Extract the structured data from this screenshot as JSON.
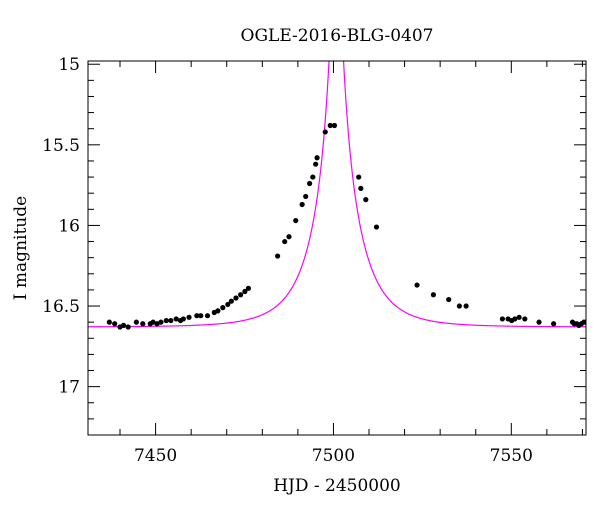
{
  "chart_data": {
    "type": "scatter",
    "title": "OGLE-2016-BLG-0407",
    "xlabel": "HJD - 2450000",
    "ylabel": "I magnitude",
    "xlim": [
      7431,
      7571
    ],
    "ylim": [
      17.3,
      14.98
    ],
    "y_inverted": true,
    "xticks": [
      7450,
      7500,
      7550
    ],
    "xtick_labels": [
      "7450",
      "7500",
      "7550"
    ],
    "yticks": [
      15,
      15.5,
      16,
      16.5,
      17
    ],
    "ytick_labels": [
      "15",
      "15.5",
      "16",
      "16.5",
      "17"
    ],
    "grid": false,
    "legend": "none",
    "colors": {
      "model": "#ff00ff",
      "points": "#000000",
      "axes": "#000000"
    },
    "series": [
      {
        "kind": "points",
        "points": [
          [
            7437.0,
            16.6
          ],
          [
            7438.5,
            16.61
          ],
          [
            7440.0,
            16.63
          ],
          [
            7441.0,
            16.62
          ],
          [
            7442.3,
            16.63
          ],
          [
            7444.6,
            16.6
          ],
          [
            7446.4,
            16.61
          ],
          [
            7448.5,
            16.61
          ],
          [
            7449.3,
            16.6
          ],
          [
            7450.4,
            16.61
          ],
          [
            7451.5,
            16.6
          ],
          [
            7453.0,
            16.59
          ],
          [
            7454.3,
            16.59
          ],
          [
            7455.8,
            16.58
          ],
          [
            7457.0,
            16.59
          ],
          [
            7457.8,
            16.58
          ],
          [
            7459.4,
            16.57
          ],
          [
            7461.6,
            16.56
          ],
          [
            7462.7,
            16.56
          ],
          [
            7464.6,
            16.56
          ],
          [
            7466.5,
            16.54
          ],
          [
            7467.5,
            16.53
          ],
          [
            7468.9,
            16.51
          ],
          [
            7470.3,
            16.49
          ],
          [
            7471.3,
            16.47
          ],
          [
            7472.6,
            16.45
          ],
          [
            7473.9,
            16.43
          ],
          [
            7475.1,
            16.41
          ],
          [
            7476.1,
            16.39
          ],
          [
            7484.3,
            16.19
          ],
          [
            7486.3,
            16.1
          ],
          [
            7487.5,
            16.07
          ],
          [
            7489.4,
            15.97
          ],
          [
            7491.2,
            15.87
          ],
          [
            7492.2,
            15.82
          ],
          [
            7493.3,
            15.74
          ],
          [
            7494.2,
            15.7
          ],
          [
            7495.0,
            15.62
          ],
          [
            7495.4,
            15.58
          ],
          [
            7497.7,
            15.42
          ],
          [
            7499.1,
            15.38
          ],
          [
            7500.3,
            15.38
          ],
          [
            7507.1,
            15.7
          ],
          [
            7507.7,
            15.77
          ],
          [
            7509.1,
            15.84
          ],
          [
            7512.1,
            16.01
          ],
          [
            7523.5,
            16.37
          ],
          [
            7528.1,
            16.43
          ],
          [
            7532.4,
            16.46
          ],
          [
            7535.4,
            16.5
          ],
          [
            7537.3,
            16.5
          ],
          [
            7547.5,
            16.58
          ],
          [
            7549.1,
            16.58
          ],
          [
            7550.1,
            16.59
          ],
          [
            7551.0,
            16.58
          ],
          [
            7552.2,
            16.57
          ],
          [
            7553.8,
            16.58
          ],
          [
            7557.8,
            16.6
          ],
          [
            7561.9,
            16.61
          ],
          [
            7567.2,
            16.6
          ],
          [
            7567.7,
            16.61
          ],
          [
            7568.4,
            16.61
          ],
          [
            7569.0,
            16.62
          ],
          [
            7569.7,
            16.61
          ],
          [
            7570.4,
            16.6
          ],
          [
            7571.0,
            16.6
          ]
        ]
      },
      {
        "kind": "model",
        "t0": 7500.8,
        "tE": 12.0,
        "u0": 0.073,
        "base_mag": 16.63,
        "blend_fraction": 0.8
      }
    ]
  }
}
